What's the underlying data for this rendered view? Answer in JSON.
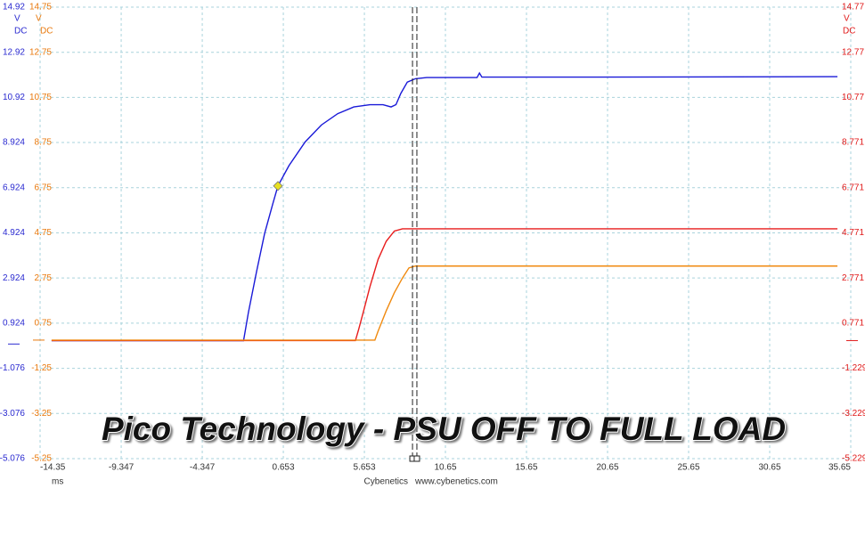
{
  "chart_data": {
    "type": "line",
    "title": "Pico Technology - PSU OFF TO FULL LOAD",
    "x_label": "ms",
    "source": "Cybenetics",
    "url": "www.cybenetics.com",
    "xlim": [
      -14.35,
      35.65
    ],
    "xticks": [
      -14.35,
      -9.347,
      -4.347,
      0.653,
      5.653,
      10.65,
      15.65,
      20.65,
      25.65,
      30.65,
      35.65
    ],
    "grid": true,
    "axes": [
      {
        "id": "y",
        "side": "left",
        "color": "#2a2ad0",
        "unit": "V",
        "coupling": "DC",
        "lim": [
          -5.076,
          14.92
        ],
        "ticks": [
          14.92,
          12.92,
          10.92,
          8.924,
          6.924,
          4.924,
          2.924,
          0.924,
          -1.076,
          -3.076,
          -5.076
        ]
      },
      {
        "id": "y3",
        "side": "left",
        "color": "#e8780c",
        "unit": "V",
        "coupling": "DC",
        "lim": [
          -5.25,
          14.75
        ],
        "ticks": [
          14.75,
          12.75,
          10.75,
          8.75,
          6.75,
          4.75,
          2.75,
          0.75,
          -1.25,
          -3.25,
          -5.25
        ]
      },
      {
        "id": "y2",
        "side": "right",
        "color": "#e01818",
        "unit": "V",
        "coupling": "DC",
        "lim": [
          -5.229,
          14.77
        ],
        "ticks": [
          14.77,
          12.77,
          10.77,
          8.771,
          6.771,
          4.771,
          2.771,
          0.771,
          -1.229,
          -3.229,
          -5.229
        ]
      }
    ],
    "series": [
      {
        "color": "#1a1ad8",
        "axis": "y",
        "x": [
          -13.64,
          -1.8,
          -1.5,
          -1.0,
          -0.5,
          0,
          0.32,
          1.0,
          2.0,
          3.0,
          4.0,
          5.0,
          6.0,
          6.8,
          7.3,
          7.6,
          7.9,
          8.3,
          8.8,
          9.5,
          12.6,
          12.75,
          12.9,
          20,
          34.83
        ],
        "values": [
          0.15,
          0.15,
          1.4,
          3.2,
          4.9,
          6.2,
          7.0,
          7.9,
          8.95,
          9.7,
          10.2,
          10.5,
          10.6,
          10.6,
          10.5,
          10.6,
          11.1,
          11.6,
          11.75,
          11.8,
          11.8,
          12.0,
          11.82,
          11.82,
          11.84
        ]
      },
      {
        "color": "#e81c1c",
        "axis": "y2",
        "x": [
          -13.64,
          5.1,
          5.3,
          5.6,
          6.0,
          6.5,
          7.0,
          7.5,
          8.0,
          34.83
        ],
        "values": [
          0.0,
          0.0,
          0.5,
          1.3,
          2.4,
          3.6,
          4.4,
          4.85,
          4.95,
          4.95
        ]
      },
      {
        "color": "#f08a10",
        "axis": "y3",
        "x": [
          -13.64,
          6.3,
          6.5,
          7.0,
          7.5,
          8.0,
          8.4,
          8.8,
          34.83
        ],
        "values": [
          0.0,
          0.0,
          0.4,
          1.3,
          2.1,
          2.75,
          3.2,
          3.28,
          3.28
        ]
      }
    ],
    "marker": {
      "x": 0.32,
      "y": 7.0,
      "color": "#e8e020"
    },
    "cursors": [
      8.62,
      8.89
    ]
  }
}
